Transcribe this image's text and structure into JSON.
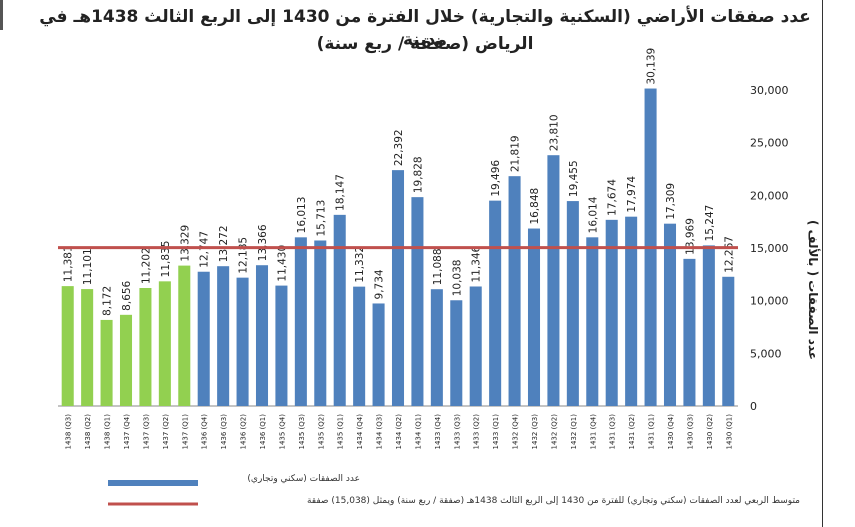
{
  "chart_data": {
    "type": "bar",
    "title_line1": "عدد صفقات الأراضي (السكنية والتجارية) خلال الفترة من 1430 إلى الربع الثالث 1438هـ في مدينة",
    "title_line2": "الرياض (صفقة / ربع سنة)",
    "ylabel": "عدد الصفقات ( بالألف )",
    "ylim": [
      0,
      30000
    ],
    "yticks": [
      0,
      5000,
      10000,
      15000,
      20000,
      25000,
      30000
    ],
    "ytick_labels": [
      "0",
      "5,000",
      "10,000",
      "15,000",
      "20,000",
      "25,000",
      "30,000"
    ],
    "categories": [
      "1438 (Q3)",
      "1438 (Q2)",
      "1438 (Q1)",
      "1437 (Q4)",
      "1437 (Q3)",
      "1437 (Q2)",
      "1437 (Q1)",
      "1436 (Q4)",
      "1436 (Q3)",
      "1436 (Q2)",
      "1436 (Q1)",
      "1435 (Q4)",
      "1435 (Q3)",
      "1435 (Q2)",
      "1435 (Q1)",
      "1434 (Q4)",
      "1434 (Q3)",
      "1434 (Q2)",
      "1434 (Q1)",
      "1433 (Q4)",
      "1433 (Q3)",
      "1433 (Q2)",
      "1433 (Q1)",
      "1432 (Q4)",
      "1432 (Q3)",
      "1432 (Q2)",
      "1432 (Q1)",
      "1431 (Q4)",
      "1431 (Q3)",
      "1431 (Q2)",
      "1431 (Q1)",
      "1430 (Q4)",
      "1430 (Q3)",
      "1430 (Q2)",
      "1430 (Q1)"
    ],
    "values": [
      11381,
      11101,
      8172,
      8656,
      11202,
      11835,
      13329,
      12747,
      13272,
      12185,
      13366,
      11430,
      16013,
      15713,
      18147,
      11332,
      9734,
      22392,
      19828,
      11088,
      10038,
      11346,
      19496,
      21819,
      16848,
      23810,
      19455,
      16014,
      17674,
      17974,
      30139,
      17309,
      13969,
      15247,
      12267
    ],
    "value_labels": [
      "11,381",
      "11,101",
      "8,172",
      "8,656",
      "11,202",
      "11,835",
      "13,329",
      "12,747",
      "13,272",
      "12,185",
      "13,366",
      "11,430",
      "16,013",
      "15,713",
      "18,147",
      "11,332",
      "9,734",
      "22,392",
      "19,828",
      "11,088",
      "10,038",
      "11,346",
      "19,496",
      "21,819",
      "16,848",
      "23,810",
      "19,455",
      "16,014",
      "17,674",
      "17,974",
      "30,139",
      "17,309",
      "13,969",
      "15,247",
      "12,267"
    ],
    "bar_colors": [
      "#92d050",
      "#92d050",
      "#92d050",
      "#92d050",
      "#92d050",
      "#92d050",
      "#92d050",
      "#4f81bd",
      "#4f81bd",
      "#4f81bd",
      "#4f81bd",
      "#4f81bd",
      "#4f81bd",
      "#4f81bd",
      "#4f81bd",
      "#4f81bd",
      "#4f81bd",
      "#4f81bd",
      "#4f81bd",
      "#4f81bd",
      "#4f81bd",
      "#4f81bd",
      "#4f81bd",
      "#4f81bd",
      "#4f81bd",
      "#4f81bd",
      "#4f81bd",
      "#4f81bd",
      "#4f81bd",
      "#4f81bd",
      "#4f81bd",
      "#4f81bd",
      "#4f81bd",
      "#4f81bd",
      "#4f81bd"
    ],
    "average_line": {
      "value": 15038,
      "color": "#c0504d"
    },
    "legend": [
      {
        "label": "عدد الصفقات (سكني وتجاري)",
        "color": "#4f81bd",
        "kind": "bar"
      },
      {
        "label": "متوسط الربعي لعدد الصفقات (سكني وتجاري) للفترة من 1430 إلى الربع الثالث 1438هـ (صفقة / ربع سنة) ويمثل (15,038) صفقة",
        "color": "#c0504d",
        "kind": "line"
      }
    ]
  }
}
